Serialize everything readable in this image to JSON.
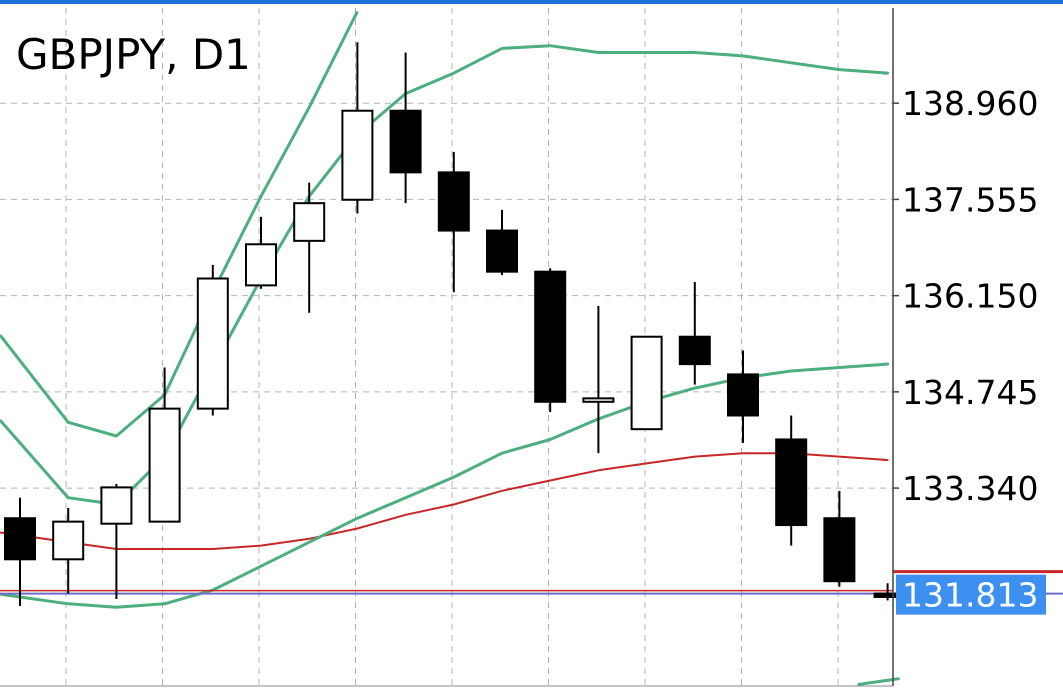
{
  "header": {
    "title": "GBPJPY, D1"
  },
  "chart_data": {
    "type": "candlestick",
    "title": "GBPJPY, D1",
    "y_range": [
      130.45,
      140.35
    ],
    "y_ticks": [
      {
        "value": 138.96,
        "label": "138.960"
      },
      {
        "value": 137.555,
        "label": "137.555"
      },
      {
        "value": 136.15,
        "label": "136.150"
      },
      {
        "value": 134.745,
        "label": "134.745"
      },
      {
        "value": 133.34,
        "label": "133.340"
      }
    ],
    "current_price": {
      "value": 131.813,
      "label": "131.813",
      "color": "#3d8ff0"
    },
    "grid": true,
    "colors": {
      "bullish_body": "#ffffff",
      "bearish_body": "#000000",
      "candle_outline": "#000000",
      "bands": "#4caf7d",
      "middle_line": "#c62828",
      "price_line": "#c62828",
      "bid_line": "#6e6ec8",
      "grid": "#b4b4b4"
    },
    "candles": [
      {
        "open": 132.9,
        "high": 133.2,
        "low": 131.62,
        "close": 132.3
      },
      {
        "open": 132.3,
        "high": 133.05,
        "low": 131.8,
        "close": 132.85
      },
      {
        "open": 132.82,
        "high": 133.4,
        "low": 131.72,
        "close": 133.35
      },
      {
        "open": 132.85,
        "high": 135.1,
        "low": 132.85,
        "close": 134.5
      },
      {
        "open": 134.5,
        "high": 136.6,
        "low": 134.4,
        "close": 136.4
      },
      {
        "open": 136.3,
        "high": 137.3,
        "low": 136.25,
        "close": 136.9
      },
      {
        "open": 136.95,
        "high": 137.8,
        "low": 135.9,
        "close": 137.5
      },
      {
        "open": 137.55,
        "high": 139.85,
        "low": 137.35,
        "close": 138.85
      },
      {
        "open": 138.85,
        "high": 139.7,
        "low": 137.5,
        "close": 137.95
      },
      {
        "open": 137.95,
        "high": 138.25,
        "low": 136.2,
        "close": 137.1
      },
      {
        "open": 137.1,
        "high": 137.4,
        "low": 136.45,
        "close": 136.5
      },
      {
        "open": 136.5,
        "high": 136.55,
        "low": 134.45,
        "close": 134.6
      },
      {
        "open": 134.6,
        "high": 136.0,
        "low": 133.85,
        "close": 134.65
      },
      {
        "open": 134.2,
        "high": 135.55,
        "low": 134.22,
        "close": 135.55
      },
      {
        "open": 135.55,
        "high": 136.35,
        "low": 134.85,
        "close": 135.15
      },
      {
        "open": 135.0,
        "high": 135.35,
        "low": 134.0,
        "close": 134.4
      },
      {
        "open": 134.05,
        "high": 134.4,
        "low": 132.5,
        "close": 132.8
      },
      {
        "open": 132.9,
        "high": 133.3,
        "low": 131.9,
        "close": 131.98
      },
      {
        "open": 131.8,
        "high": 131.95,
        "low": 131.7,
        "close": 131.75
      }
    ],
    "indicators": [
      {
        "role": "outer_upper_band",
        "color": "#4caf7d",
        "values": [
          135.2,
          134.3,
          134.1,
          134.7,
          136.2,
          137.6,
          138.9,
          140.3,
          null,
          null,
          null,
          null,
          null,
          null,
          null,
          null,
          null,
          null,
          null
        ]
      },
      {
        "role": "inner_upper_band",
        "color": "#4caf7d",
        "values": [
          134.0,
          133.2,
          133.1,
          133.8,
          135.1,
          136.4,
          137.6,
          138.5,
          139.1,
          139.4,
          139.76,
          139.8,
          139.7,
          139.7,
          139.7,
          139.65,
          139.55,
          139.45,
          139.4
        ]
      },
      {
        "role": "middle_line",
        "color": "#c62828",
        "values": [
          132.65,
          132.55,
          132.45,
          132.45,
          132.45,
          132.5,
          132.6,
          132.75,
          132.95,
          133.1,
          133.3,
          133.45,
          133.6,
          133.7,
          133.8,
          133.85,
          133.85,
          133.8,
          133.75
        ]
      },
      {
        "role": "inner_lower_band",
        "color": "#4caf7d",
        "values": [
          131.75,
          131.65,
          131.6,
          131.65,
          131.85,
          132.2,
          132.55,
          132.9,
          133.2,
          133.5,
          133.85,
          134.05,
          134.35,
          134.6,
          134.8,
          134.95,
          135.05,
          135.1,
          135.15
        ]
      },
      {
        "role": "outer_lower_band",
        "color": "#4caf7d",
        "values": [
          null,
          null,
          null,
          null,
          null,
          null,
          null,
          null,
          null,
          null,
          null,
          null,
          null,
          null,
          null,
          null,
          null,
          null,
          130.5
        ]
      }
    ]
  }
}
